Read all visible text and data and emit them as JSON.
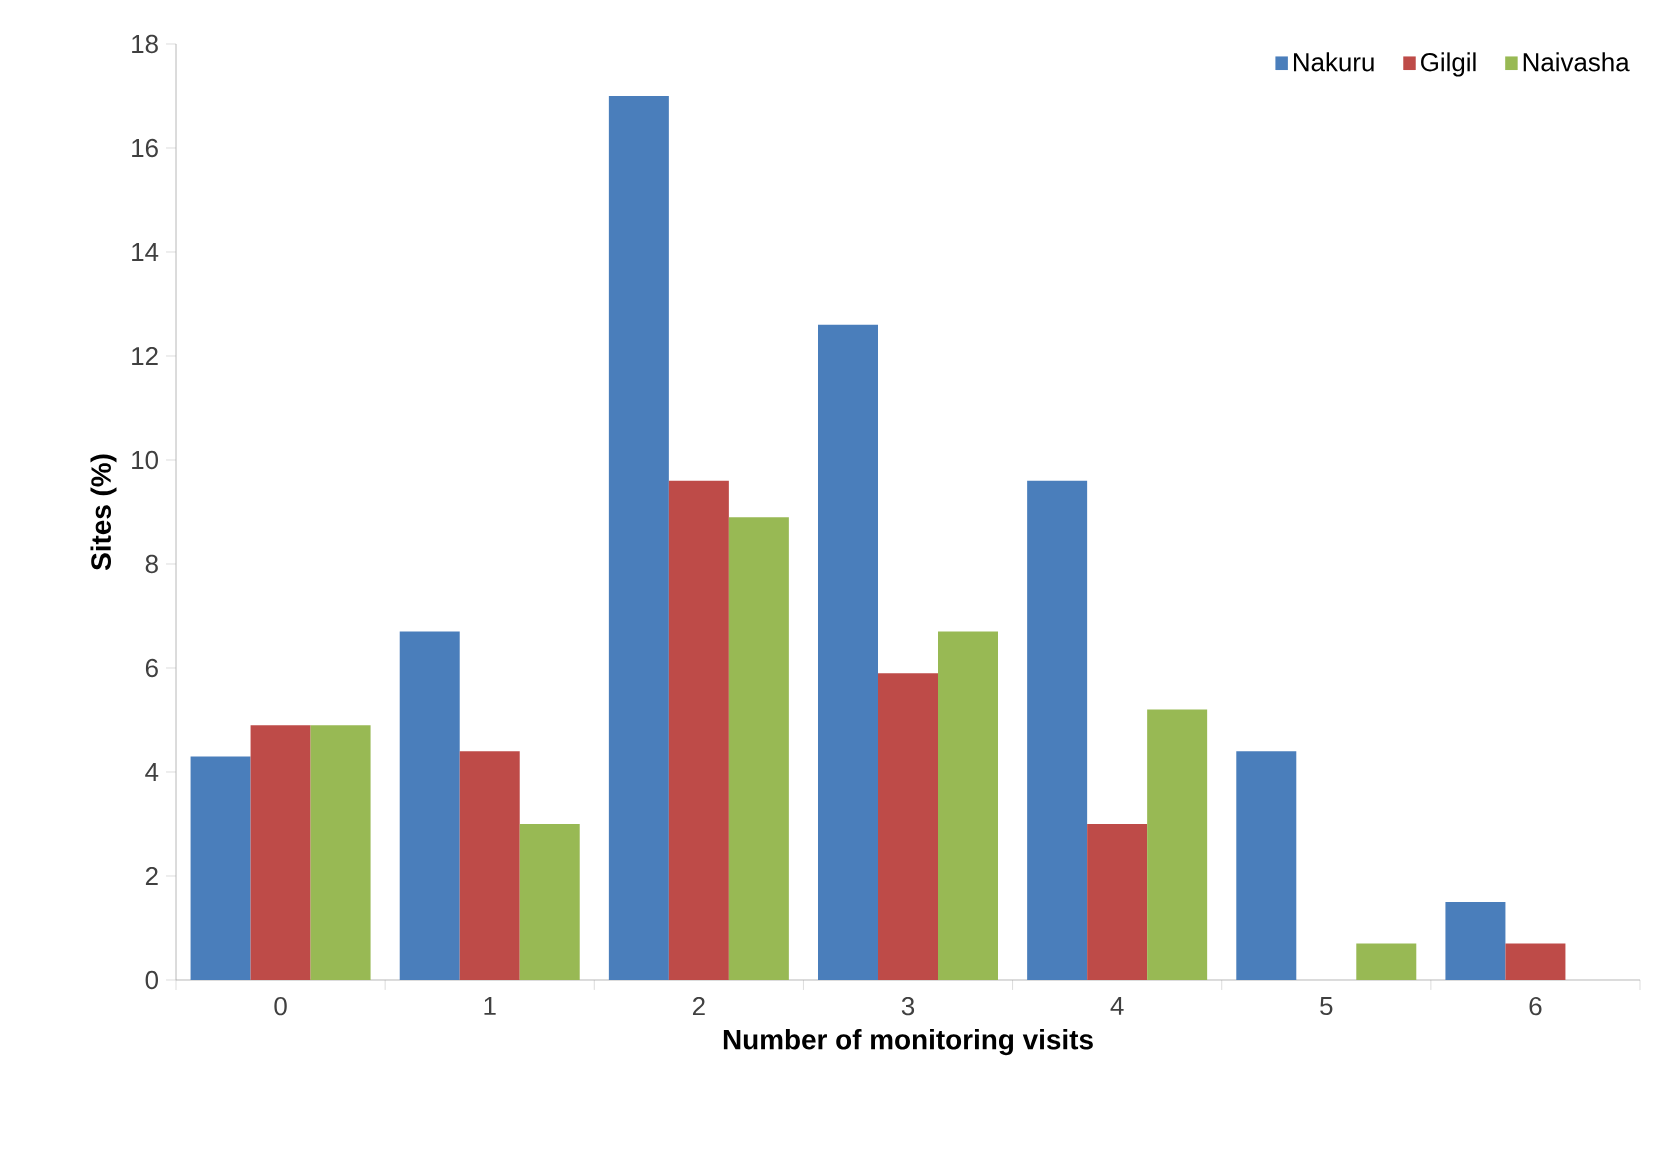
{
  "chart_data": {
    "type": "bar",
    "xlabel": "Number of monitoring visits",
    "ylabel": "Sites (%)",
    "categories": [
      "0",
      "1",
      "2",
      "3",
      "4",
      "5",
      "6"
    ],
    "series": [
      {
        "name": "Nakuru",
        "color": "#4a7ebb",
        "values": [
          4.3,
          6.7,
          17,
          12.6,
          9.6,
          4.4,
          1.5
        ]
      },
      {
        "name": "Gilgil",
        "color": "#be4b48",
        "values": [
          4.9,
          4.4,
          9.6,
          5.9,
          3.0,
          0,
          0.7
        ]
      },
      {
        "name": "Naivasha",
        "color": "#98b954",
        "values": [
          4.9,
          3.0,
          8.9,
          6.7,
          5.2,
          0.7,
          null
        ]
      }
    ],
    "ylim": [
      0,
      18
    ],
    "yticks": [
      0,
      2,
      4,
      6,
      8,
      10,
      12,
      14,
      16,
      18
    ],
    "legend": "top right",
    "grid": false
  }
}
